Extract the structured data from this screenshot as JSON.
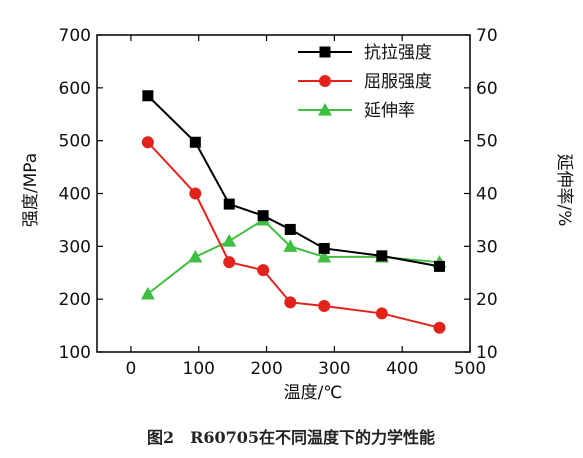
{
  "chart_data": {
    "type": "line",
    "x": [
      25,
      95,
      145,
      195,
      235,
      285,
      370,
      455
    ],
    "xlabel": "温度/℃",
    "xlim": [
      -50,
      500
    ],
    "xticks": [
      0,
      100,
      200,
      300,
      400,
      500
    ],
    "ylabel_left": "强度/MPa",
    "ylim_left": [
      100,
      700
    ],
    "yticks_left": [
      100,
      200,
      300,
      400,
      500,
      600,
      700
    ],
    "ylabel_right": "延伸率/%",
    "ylim_right": [
      10,
      70
    ],
    "yticks_right": [
      10,
      20,
      30,
      40,
      50,
      60,
      70
    ],
    "series": [
      {
        "name": "抗拉强度",
        "axis": "left",
        "color": "#000000",
        "marker": "square",
        "values": [
          585,
          497,
          380,
          358,
          332,
          296,
          282,
          262
        ]
      },
      {
        "name": "屈服强度",
        "axis": "left",
        "color": "#e3231b",
        "marker": "circle",
        "values": [
          497,
          400,
          270,
          255,
          194,
          187,
          173,
          146
        ]
      },
      {
        "name": "延伸率",
        "axis": "right",
        "color": "#3fbf3f",
        "marker": "triangle",
        "values": [
          21,
          28,
          31,
          35,
          30,
          28,
          28,
          27
        ]
      }
    ],
    "legend_position": "top-right",
    "grid": false
  },
  "caption": "图2　R60705在不同温度下的力学性能"
}
